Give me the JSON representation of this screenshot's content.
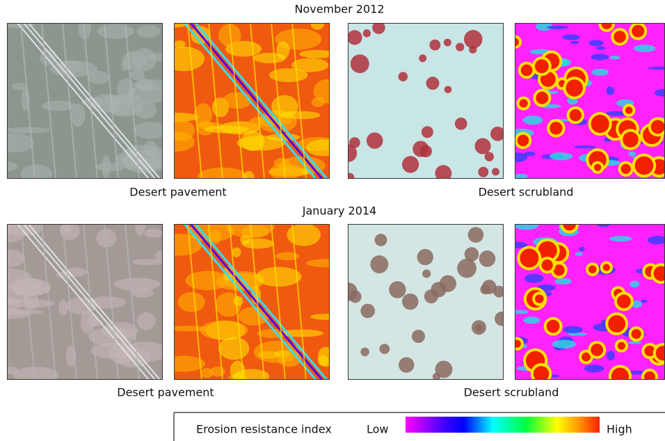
{
  "rows": [
    {
      "title": "November 2012",
      "labels": [
        "Desert pavement",
        "Desert scrubland"
      ]
    },
    {
      "title": "January 2014",
      "labels": [
        "Desert pavement",
        "Desert scrubland"
      ]
    }
  ],
  "legend": {
    "title": "Erosion resistance index",
    "low": "Low",
    "high": "High"
  }
}
